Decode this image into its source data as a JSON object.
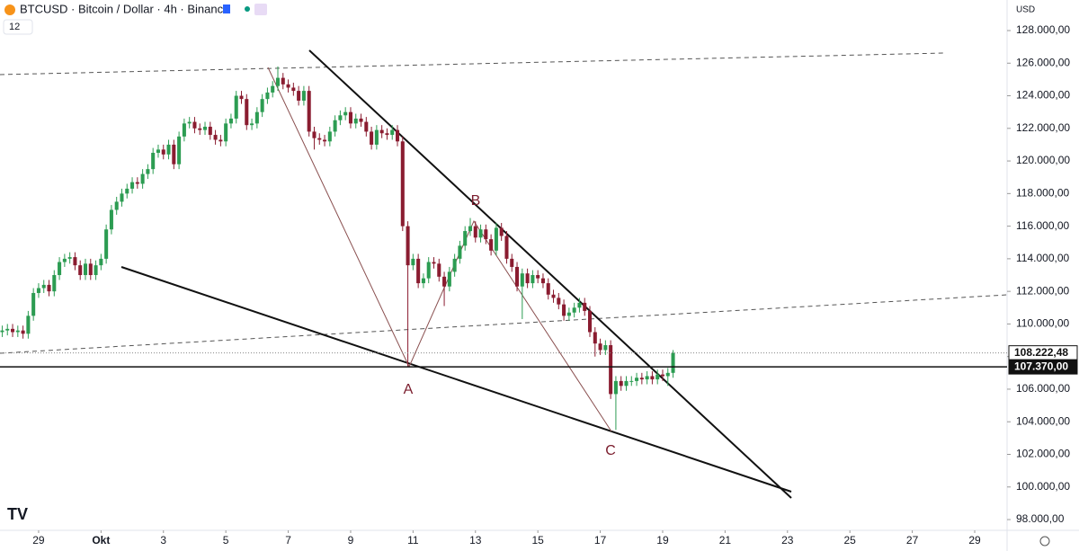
{
  "chart_data": {
    "type": "candlestick",
    "title": "BTCUSD · Bitcoin / Dollar · 4h · Binance",
    "indicator": "12",
    "currency": "USD",
    "up_color": "#2c9c52",
    "down_color": "#8a1c30",
    "x": [
      -28,
      -24,
      -20,
      -16,
      -12,
      -8,
      -4,
      0,
      4,
      8,
      12,
      16,
      20,
      24,
      28,
      32,
      36,
      40,
      44,
      48,
      52,
      56,
      60,
      64,
      68,
      72,
      76,
      80,
      84,
      88,
      92,
      96,
      100,
      104,
      108,
      112,
      116,
      120,
      124,
      128,
      132,
      136,
      140,
      144,
      148,
      152,
      156,
      160,
      164,
      168,
      172,
      176,
      180,
      184,
      188,
      192,
      196,
      200,
      204,
      208,
      212,
      216,
      220,
      224,
      228,
      232,
      236,
      240,
      244,
      248,
      252,
      256,
      260,
      264,
      268,
      272,
      276,
      280,
      284,
      288,
      292,
      296,
      300,
      304,
      308,
      312,
      316,
      320,
      324,
      328,
      332,
      336,
      340,
      344,
      348,
      352,
      356,
      360,
      364,
      368,
      372,
      376,
      380,
      384,
      388,
      392,
      396,
      400,
      404,
      408,
      412,
      416,
      420,
      424,
      428,
      432,
      436,
      440,
      444,
      448,
      452,
      456,
      460,
      464,
      468,
      472,
      476,
      480,
      484,
      488
    ],
    "open": [
      109500,
      109600,
      109700,
      109500,
      109600,
      109400,
      110500,
      111900,
      112200,
      112400,
      112000,
      113000,
      113800,
      114000,
      114100,
      113600,
      113000,
      113700,
      113000,
      113600,
      114000,
      115800,
      117000,
      117500,
      118000,
      118300,
      118700,
      118600,
      119200,
      119500,
      120500,
      120700,
      120400,
      121000,
      119800,
      121500,
      122300,
      122400,
      122000,
      121900,
      122100,
      121600,
      121300,
      121200,
      122300,
      122600,
      124000,
      123800,
      122200,
      122300,
      123000,
      123800,
      124200,
      124600,
      125100,
      124700,
      124500,
      124300,
      123700,
      124300,
      121800,
      121400,
      121300,
      121200,
      121800,
      122500,
      122800,
      123000,
      122300,
      122600,
      122400,
      121800,
      121000,
      121900,
      121700,
      121600,
      121900,
      121200,
      116000,
      113600,
      114000,
      112500,
      112800,
      113800,
      113700,
      112900,
      112300,
      113200,
      114000,
      114800,
      115700,
      116000,
      115300,
      115800,
      115200,
      114500,
      115900,
      115400,
      114000,
      113500,
      112300,
      113100,
      112500,
      113000,
      112800,
      112500,
      111800,
      111600,
      111200,
      110500,
      110700,
      111000,
      111300,
      110800,
      109500,
      108800,
      108400,
      108700,
      105700,
      106500,
      106200,
      106500,
      106500,
      106700,
      106600,
      106800,
      106600,
      106900,
      106800,
      107000
    ],
    "high": [
      109900,
      110000,
      110000,
      109900,
      109900,
      110800,
      112200,
      112500,
      112700,
      112700,
      113300,
      114100,
      114300,
      114400,
      114400,
      113900,
      114000,
      114000,
      113900,
      114300,
      116100,
      117300,
      117800,
      118300,
      118600,
      119000,
      119000,
      119500,
      119800,
      120800,
      121000,
      121000,
      121300,
      121300,
      121800,
      122600,
      122700,
      122700,
      122300,
      122400,
      122400,
      121900,
      121600,
      122600,
      122900,
      124300,
      124300,
      124100,
      122600,
      123300,
      124100,
      124500,
      124900,
      125800,
      125400,
      125000,
      124800,
      124600,
      124600,
      124600,
      122100,
      121700,
      121600,
      122100,
      122800,
      123100,
      123300,
      123300,
      122900,
      122900,
      122700,
      122100,
      122200,
      122200,
      122000,
      122200,
      122200,
      121500,
      116300,
      114300,
      114300,
      113100,
      114100,
      114100,
      114000,
      113200,
      113500,
      114300,
      115100,
      116000,
      116500,
      116300,
      116100,
      116100,
      115500,
      116200,
      116200,
      115700,
      114300,
      113800,
      113400,
      113400,
      113300,
      113300,
      113100,
      112800,
      112100,
      111900,
      111500,
      111000,
      111300,
      111600,
      111600,
      111100,
      109800,
      109100,
      109000,
      109000,
      106800,
      106800,
      106800,
      106800,
      107000,
      107000,
      107100,
      107100,
      107200,
      107200,
      107300,
      108400
    ],
    "low": [
      109200,
      109300,
      109200,
      109200,
      109100,
      109100,
      110200,
      111600,
      111900,
      111700,
      111700,
      112700,
      113500,
      113700,
      113300,
      112700,
      112700,
      112700,
      112700,
      113300,
      113700,
      115500,
      116700,
      117200,
      117700,
      118000,
      118300,
      118300,
      118900,
      119200,
      120200,
      120100,
      120100,
      119500,
      119500,
      121200,
      122000,
      121700,
      121600,
      121600,
      121300,
      121000,
      120900,
      120900,
      122000,
      122300,
      123500,
      121900,
      121900,
      122000,
      122700,
      123500,
      123900,
      124300,
      124400,
      124200,
      124000,
      123400,
      123400,
      121500,
      120700,
      121000,
      120900,
      120900,
      121500,
      122200,
      122500,
      122000,
      122000,
      122100,
      121500,
      120700,
      120700,
      121400,
      121300,
      121300,
      120900,
      115700,
      107370,
      113300,
      112200,
      112200,
      112500,
      113400,
      112600,
      111100,
      112000,
      112900,
      113700,
      114500,
      115400,
      115000,
      115000,
      114900,
      114200,
      114200,
      115100,
      113700,
      113200,
      112000,
      110300,
      112200,
      112200,
      112500,
      112200,
      111500,
      111300,
      110900,
      110200,
      110200,
      110400,
      110700,
      110500,
      109200,
      108000,
      108100,
      108100,
      105400,
      103500,
      105900,
      105900,
      106200,
      106200,
      106300,
      106300,
      106300,
      106300,
      106500,
      106200,
      106700
    ],
    "close": [
      109600,
      109700,
      109500,
      109600,
      109400,
      110500,
      111900,
      112200,
      112400,
      112000,
      113000,
      113800,
      114000,
      114100,
      113600,
      113000,
      113700,
      113000,
      113600,
      114000,
      115800,
      117000,
      117500,
      118000,
      118300,
      118700,
      118600,
      119200,
      119500,
      120500,
      120700,
      120400,
      121000,
      119800,
      121500,
      122300,
      122400,
      122000,
      121900,
      122100,
      121600,
      121300,
      121200,
      122300,
      122600,
      124000,
      123800,
      122200,
      122300,
      123000,
      123800,
      124200,
      124600,
      125100,
      124700,
      124500,
      124300,
      123700,
      124300,
      121800,
      121400,
      121300,
      121200,
      121800,
      122500,
      122800,
      123000,
      122300,
      122600,
      122400,
      121800,
      121000,
      121900,
      121700,
      121600,
      121900,
      121200,
      116000,
      113600,
      114000,
      112500,
      112800,
      113800,
      113700,
      112900,
      112300,
      113200,
      114000,
      114800,
      115700,
      116000,
      115300,
      115800,
      115200,
      114500,
      115900,
      115400,
      114000,
      113500,
      112300,
      113100,
      112500,
      113000,
      112800,
      112500,
      111800,
      111600,
      111200,
      110500,
      110700,
      111000,
      111300,
      110800,
      109500,
      108800,
      108400,
      108700,
      105700,
      106500,
      106200,
      106500,
      106500,
      106700,
      106600,
      106800,
      106600,
      106900,
      106800,
      107000,
      108222.48
    ],
    "xlim": [
      -29.7,
      744.9
    ],
    "xticks": [
      {
        "value": 0,
        "label": "29"
      },
      {
        "value": 48,
        "label": "Okt"
      },
      {
        "value": 96,
        "label": "3"
      },
      {
        "value": 144,
        "label": "5"
      },
      {
        "value": 192,
        "label": "7"
      },
      {
        "value": 240,
        "label": "9"
      },
      {
        "value": 288,
        "label": "11"
      },
      {
        "value": 336,
        "label": "13"
      },
      {
        "value": 384,
        "label": "15"
      },
      {
        "value": 432,
        "label": "17"
      },
      {
        "value": 480,
        "label": "19"
      },
      {
        "value": 528,
        "label": "21"
      },
      {
        "value": 576,
        "label": "23"
      },
      {
        "value": 624,
        "label": "25"
      },
      {
        "value": 672,
        "label": "27"
      },
      {
        "value": 720,
        "label": "29"
      }
    ],
    "ylim": [
      97340,
      129875
    ],
    "yticks": [
      {
        "value": 128000,
        "label": "128.000,00"
      },
      {
        "value": 126000,
        "label": "126.000,00"
      },
      {
        "value": 124000,
        "label": "124.000,00"
      },
      {
        "value": 122000,
        "label": "122.000,00"
      },
      {
        "value": 120000,
        "label": "120.000,00"
      },
      {
        "value": 118000,
        "label": "118.000,00"
      },
      {
        "value": 116000,
        "label": "116.000,00"
      },
      {
        "value": 114000,
        "label": "114.000,00"
      },
      {
        "value": 112000,
        "label": "112.000,00"
      },
      {
        "value": 110000,
        "label": "110.000,00"
      },
      {
        "value": 108000,
        "label": "108.000,00"
      },
      {
        "value": 106000,
        "label": "106.000,00"
      },
      {
        "value": 104000,
        "label": "104.000,00"
      },
      {
        "value": 102000,
        "label": "102.000,00"
      },
      {
        "value": 100000,
        "label": "100.000,00"
      },
      {
        "value": 98000,
        "label": "98.000,00"
      }
    ],
    "grid": false,
    "price_lines": [
      {
        "value": 108222.48,
        "label": "108.222,48",
        "style": "dotted"
      },
      {
        "value": 107370,
        "label": "107.370,00",
        "style": "solid"
      }
    ],
    "annotations": [
      "A",
      "B",
      "C"
    ]
  }
}
